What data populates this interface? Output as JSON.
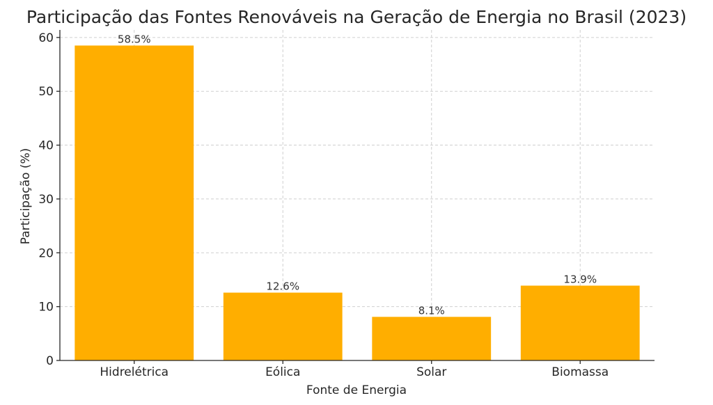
{
  "chart_data": {
    "type": "bar",
    "title": "Participação das Fontes Renováveis na Geração de Energia no Brasil (2023)",
    "xlabel": "Fonte de Energia",
    "ylabel": "Participação (%)",
    "categories": [
      "Hidrelétrica",
      "Eólica",
      "Solar",
      "Biomassa"
    ],
    "values": [
      58.5,
      12.6,
      8.1,
      13.9
    ],
    "data_labels": [
      "58.5%",
      "12.6%",
      "8.1%",
      "13.9%"
    ],
    "ylim": [
      0,
      61.4
    ],
    "yticks": [
      0,
      10,
      20,
      30,
      40,
      50,
      60
    ],
    "grid": true,
    "bar_color": "#FFAE00"
  }
}
